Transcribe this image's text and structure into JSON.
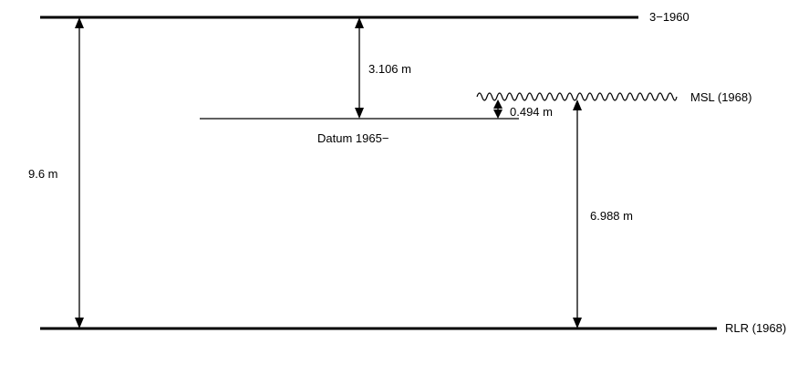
{
  "levels": {
    "top": "3−1960",
    "msl": "MSL (1968)",
    "datum": "Datum 1965−",
    "rlr": "RLR (1968)"
  },
  "dimensions": {
    "total": "9.6 m",
    "top_to_datum": "3.106 m",
    "datum_to_msl": "0.494 m",
    "msl_to_rlr": "6.988 m"
  }
}
